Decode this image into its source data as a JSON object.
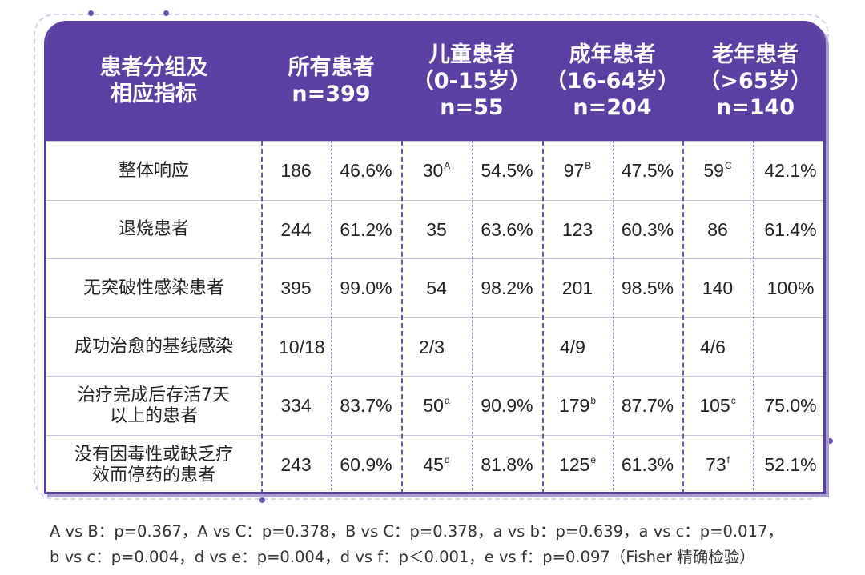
{
  "table": {
    "header": {
      "group_col": [
        "患者分组及",
        "相应指标"
      ],
      "groups": [
        {
          "lines": [
            "所有患者",
            "n=399"
          ]
        },
        {
          "lines": [
            "儿童患者",
            "（0-15岁）",
            "n=55"
          ]
        },
        {
          "lines": [
            "成年患者",
            "（16-64岁）",
            "n=204"
          ]
        },
        {
          "lines": [
            "老年患者",
            "（>65岁）",
            "n=140"
          ]
        }
      ]
    },
    "rows": [
      {
        "label": [
          "整体响应"
        ],
        "cells": [
          {
            "v": "186",
            "sup": ""
          },
          {
            "v": "46.6%",
            "sup": ""
          },
          {
            "v": "30",
            "sup": "A"
          },
          {
            "v": "54.5%",
            "sup": ""
          },
          {
            "v": "97",
            "sup": "B"
          },
          {
            "v": "47.5%",
            "sup": ""
          },
          {
            "v": "59",
            "sup": "C"
          },
          {
            "v": "42.1%",
            "sup": ""
          }
        ]
      },
      {
        "label": [
          "退烧患者"
        ],
        "cells": [
          {
            "v": "244",
            "sup": ""
          },
          {
            "v": "61.2%",
            "sup": ""
          },
          {
            "v": "35",
            "sup": ""
          },
          {
            "v": "63.6%",
            "sup": ""
          },
          {
            "v": "123",
            "sup": ""
          },
          {
            "v": "60.3%",
            "sup": ""
          },
          {
            "v": "86",
            "sup": ""
          },
          {
            "v": "61.4%",
            "sup": ""
          }
        ]
      },
      {
        "label": [
          "无突破性感染患者"
        ],
        "cells": [
          {
            "v": "395",
            "sup": ""
          },
          {
            "v": "99.0%",
            "sup": ""
          },
          {
            "v": "54",
            "sup": ""
          },
          {
            "v": "98.2%",
            "sup": ""
          },
          {
            "v": "201",
            "sup": ""
          },
          {
            "v": "98.5%",
            "sup": ""
          },
          {
            "v": "140",
            "sup": ""
          },
          {
            "v": "100%",
            "sup": ""
          }
        ]
      },
      {
        "label": [
          "成功治愈的基线感染"
        ],
        "cells": [
          {
            "v": "10/18",
            "sup": ""
          },
          {
            "v": "",
            "sup": ""
          },
          {
            "v": "2/3",
            "sup": ""
          },
          {
            "v": "",
            "sup": ""
          },
          {
            "v": "4/9",
            "sup": ""
          },
          {
            "v": "",
            "sup": ""
          },
          {
            "v": "4/6",
            "sup": ""
          },
          {
            "v": "",
            "sup": ""
          }
        ]
      },
      {
        "label": [
          "治疗完成后存活7天",
          "以上的患者"
        ],
        "cells": [
          {
            "v": "334",
            "sup": ""
          },
          {
            "v": "83.7%",
            "sup": ""
          },
          {
            "v": "50",
            "sup": "a"
          },
          {
            "v": "90.9%",
            "sup": ""
          },
          {
            "v": "179",
            "sup": "b"
          },
          {
            "v": "87.7%",
            "sup": ""
          },
          {
            "v": "105",
            "sup": "c"
          },
          {
            "v": "75.0%",
            "sup": ""
          }
        ]
      },
      {
        "label": [
          "没有因毒性或缺乏疗",
          "效而停药的患者"
        ],
        "cells": [
          {
            "v": "243",
            "sup": ""
          },
          {
            "v": "60.9%",
            "sup": ""
          },
          {
            "v": "45",
            "sup": "d"
          },
          {
            "v": "81.8%",
            "sup": ""
          },
          {
            "v": "125",
            "sup": "e"
          },
          {
            "v": "61.3%",
            "sup": ""
          },
          {
            "v": "73",
            "sup": "f"
          },
          {
            "v": "52.1%",
            "sup": ""
          }
        ]
      }
    ]
  },
  "footnote": {
    "line1": "A vs B：p=0.367，A vs C：p=0.378，B vs C：p=0.378，a vs b：p=0.639，a vs c：p=0.017，",
    "line2": "b vs c：p=0.004，d vs e：p=0.004，d vs f：p＜0.001，e vs f：p=0.097（Fisher 精确检验）"
  }
}
